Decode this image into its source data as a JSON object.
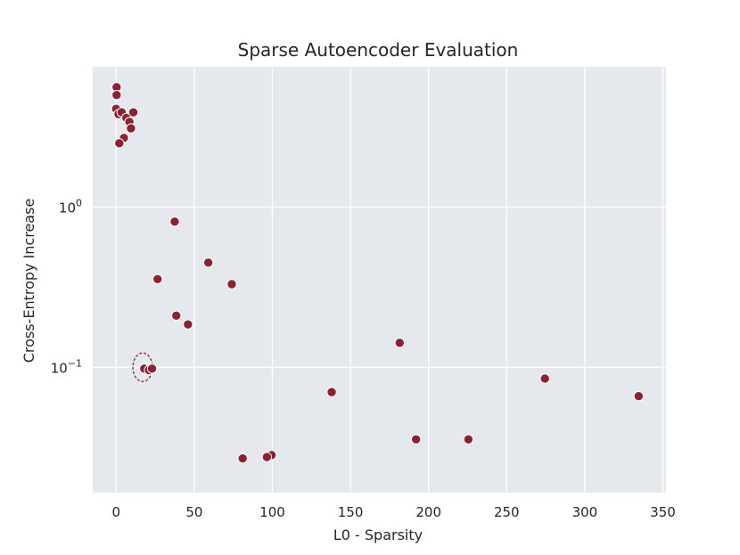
{
  "chart_data": {
    "type": "scatter",
    "title": "Sparse Autoencoder Evaluation",
    "xlabel": "L0 - Sparsity",
    "ylabel": "Cross-Entropy Increase",
    "xlim": [
      -15,
      352
    ],
    "ylim": [
      0.0165,
      7.5
    ],
    "yscale": "log",
    "grid": true,
    "x_ticks": [
      0,
      50,
      100,
      150,
      200,
      250,
      300,
      350
    ],
    "y_ticks": [
      {
        "value": 1,
        "base": "10",
        "exp": "0"
      },
      {
        "value": 0.1,
        "base": "10",
        "exp": "−1"
      }
    ],
    "colors": {
      "background": "#e5e9ee",
      "point": "#8b2131",
      "grid": "#ffffff"
    },
    "points": [
      {
        "x": 0.3,
        "y": 5.6
      },
      {
        "x": 0.3,
        "y": 5.0
      },
      {
        "x": 0.0,
        "y": 4.1
      },
      {
        "x": 1.5,
        "y": 3.8
      },
      {
        "x": 3.5,
        "y": 3.9
      },
      {
        "x": 6.5,
        "y": 3.6
      },
      {
        "x": 8.5,
        "y": 3.4
      },
      {
        "x": 11.0,
        "y": 3.9
      },
      {
        "x": 9.5,
        "y": 3.1
      },
      {
        "x": 5.0,
        "y": 2.7
      },
      {
        "x": 2.0,
        "y": 2.5
      },
      {
        "x": 37.5,
        "y": 0.81
      },
      {
        "x": 59.0,
        "y": 0.45
      },
      {
        "x": 26.5,
        "y": 0.355
      },
      {
        "x": 74.0,
        "y": 0.33
      },
      {
        "x": 38.5,
        "y": 0.21
      },
      {
        "x": 46.0,
        "y": 0.185
      },
      {
        "x": 181.5,
        "y": 0.142
      },
      {
        "x": 18.0,
        "y": 0.098
      },
      {
        "x": 21.0,
        "y": 0.096
      },
      {
        "x": 23.0,
        "y": 0.098
      },
      {
        "x": 274.5,
        "y": 0.085
      },
      {
        "x": 138.0,
        "y": 0.07
      },
      {
        "x": 334.5,
        "y": 0.066
      },
      {
        "x": 192.0,
        "y": 0.0355
      },
      {
        "x": 225.5,
        "y": 0.0355
      },
      {
        "x": 99.5,
        "y": 0.0283
      },
      {
        "x": 96.5,
        "y": 0.0275
      },
      {
        "x": 81.0,
        "y": 0.027
      }
    ],
    "annotations": [
      {
        "type": "dashed-circle",
        "x": 17.0,
        "y": 0.1
      }
    ]
  }
}
